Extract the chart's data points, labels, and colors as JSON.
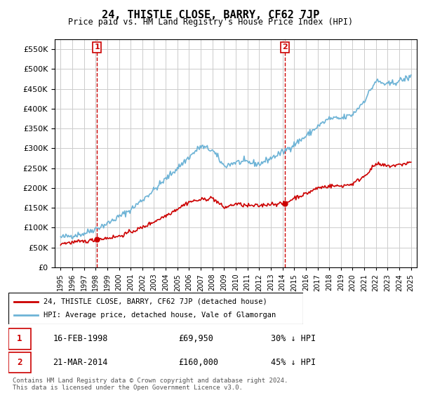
{
  "title": "24, THISTLE CLOSE, BARRY, CF62 7JP",
  "subtitle": "Price paid vs. HM Land Registry's House Price Index (HPI)",
  "legend_line1": "24, THISTLE CLOSE, BARRY, CF62 7JP (detached house)",
  "legend_line2": "HPI: Average price, detached house, Vale of Glamorgan",
  "transaction1_label": "1",
  "transaction1_date": "16-FEB-1998",
  "transaction1_price": "£69,950",
  "transaction1_hpi": "30% ↓ HPI",
  "transaction1_year": 1998.12,
  "transaction1_value": 69950,
  "transaction2_label": "2",
  "transaction2_date": "21-MAR-2014",
  "transaction2_price": "£160,000",
  "transaction2_hpi": "45% ↓ HPI",
  "transaction2_year": 2014.21,
  "transaction2_value": 160000,
  "hpi_color": "#6db3d6",
  "price_color": "#cc0000",
  "marker_color": "#cc0000",
  "vline_color": "#cc0000",
  "grid_color": "#cccccc",
  "background_color": "#ffffff",
  "footer": "Contains HM Land Registry data © Crown copyright and database right 2024.\nThis data is licensed under the Open Government Licence v3.0.",
  "ylim": [
    0,
    575000
  ],
  "yticks": [
    0,
    50000,
    100000,
    150000,
    200000,
    250000,
    300000,
    350000,
    400000,
    450000,
    500000,
    550000
  ],
  "xlim_start": 1994.5,
  "xlim_end": 2025.5
}
